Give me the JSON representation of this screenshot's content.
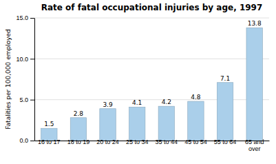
{
  "chart_data": {
    "type": "bar",
    "title": "Rate of fatal occupational injuries by age, 1997",
    "categories": [
      "16 to 17",
      "18 to 19",
      "20 to 24",
      "25 to 34",
      "35 to 44",
      "45 to 54",
      "55 to 64",
      "65 and\nover"
    ],
    "values": [
      1.5,
      2.8,
      3.9,
      4.1,
      4.2,
      4.8,
      7.1,
      13.8
    ],
    "color": "#aacfea",
    "ylabel": "Fatalities per 100,000 employed",
    "ylim": [
      0,
      15.0
    ],
    "yticks": [
      {
        "value": 0,
        "label": "0.0"
      },
      {
        "value": 5,
        "label": "5.0"
      },
      {
        "value": 10,
        "label": "10.0"
      },
      {
        "value": 15,
        "label": "15.0"
      }
    ],
    "grid": true,
    "data_labels": true
  }
}
